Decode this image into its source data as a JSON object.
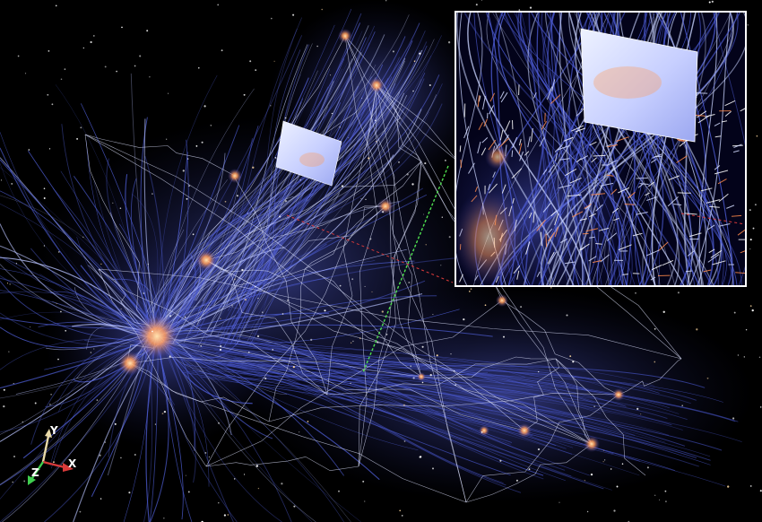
{
  "axes": {
    "y_label": "Y",
    "x_label": "X",
    "z_label": "Z"
  },
  "colors": {
    "background": "#000000",
    "filament_blue": "#4f5fd8",
    "streamline_light": "#c9d4ff",
    "hot_node": "#ff9a5a",
    "inset_border": "#ffffff",
    "axis_y": "#e8d9a8",
    "axis_x": "#d83a3a",
    "axis_z": "#3fcf4f",
    "slice_plane_edge": "#4fe04f"
  },
  "icons": {
    "orientation_gizmo": "xyz-axes-icon"
  }
}
